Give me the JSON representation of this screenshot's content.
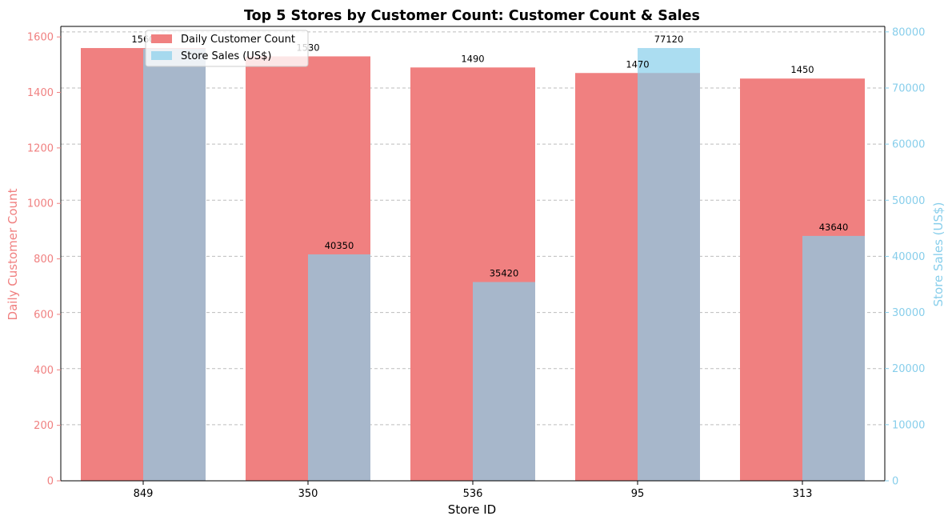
{
  "chart_data": {
    "type": "bar",
    "title": "Top 5 Stores by Customer Count: Customer Count & Sales",
    "xlabel": "Store ID",
    "categories": [
      "849",
      "350",
      "536",
      "95",
      "313"
    ],
    "series": [
      {
        "name": "Daily Customer Count",
        "axis": "left",
        "color": "#f08080",
        "values": [
          1560,
          1530,
          1490,
          1470,
          1450
        ]
      },
      {
        "name": "Store Sales (US$)",
        "axis": "right",
        "color": "#87ceeb",
        "values": [
          77000,
          40350,
          35420,
          77120,
          43640
        ]
      }
    ],
    "y_left": {
      "label": "Daily Customer Count",
      "ylim": [
        0,
        1638
      ],
      "ticks": [
        0,
        200,
        400,
        600,
        800,
        1000,
        1200,
        1400,
        1600
      ],
      "color": "#f08080"
    },
    "y_right": {
      "label": "Store Sales (US$)",
      "ylim": [
        0,
        80976
      ],
      "ticks": [
        0,
        10000,
        20000,
        30000,
        40000,
        50000,
        60000,
        70000,
        80000
      ],
      "color": "#87ceeb"
    },
    "data_labels": {
      "left": [
        "1560",
        "1530",
        "1490",
        "1470",
        "1450"
      ],
      "right": [
        "",
        "40350",
        "35420",
        "77120",
        "43640"
      ]
    },
    "grid": "horizontal dashed",
    "legend_position": "upper-left"
  }
}
